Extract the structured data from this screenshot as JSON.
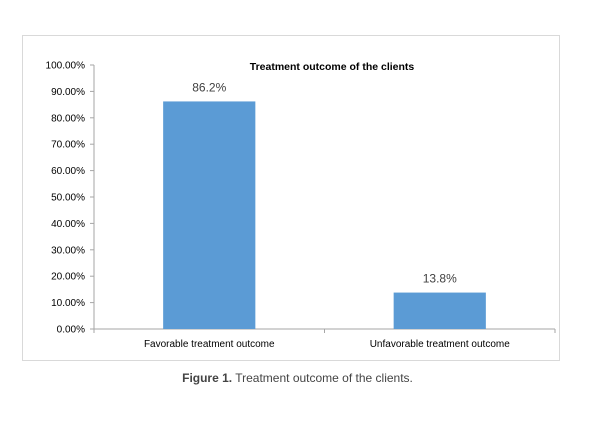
{
  "chart_data": {
    "type": "bar",
    "title": "Treatment outcome of the clients",
    "categories": [
      "Favorable treatment outcome",
      "Unfavorable treatment outcome"
    ],
    "values": [
      86.2,
      13.8
    ],
    "data_labels": [
      "86.2%",
      "13.8%"
    ],
    "ylim": [
      0,
      100
    ],
    "yticks": [
      "0.00%",
      "10.00%",
      "20.00%",
      "30.00%",
      "40.00%",
      "50.00%",
      "60.00%",
      "70.00%",
      "80.00%",
      "90.00%",
      "100.00%"
    ],
    "xlabel": "",
    "ylabel": "",
    "grid": false,
    "bar_color": "#5b9bd5"
  },
  "caption": {
    "label": "Figure 1.",
    "text": " Treatment outcome of the clients."
  }
}
